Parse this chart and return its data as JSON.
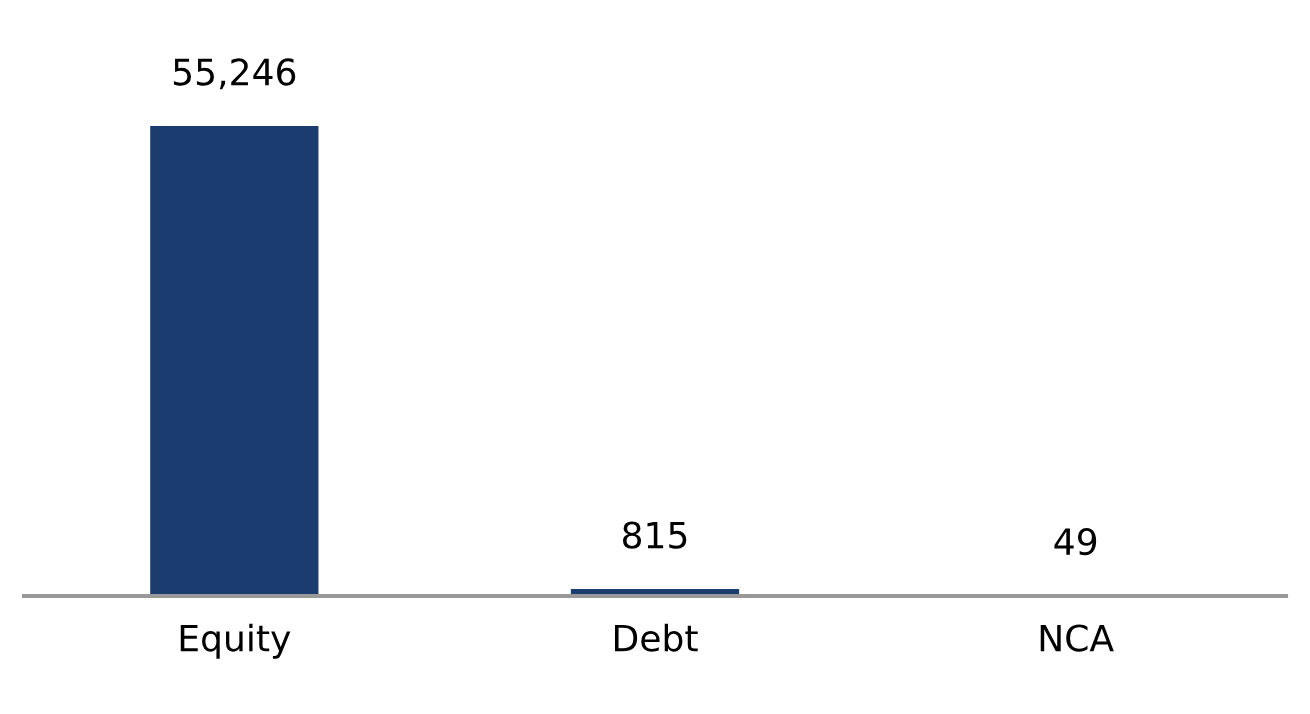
{
  "chart_data": {
    "type": "bar",
    "categories": [
      "Equity",
      "Debt",
      "NCA"
    ],
    "values": [
      55246,
      815,
      49
    ],
    "color": "#1a3c6e",
    "value_labels": [
      "55,246",
      "815",
      "49"
    ],
    "grid": false,
    "legend": false
  }
}
